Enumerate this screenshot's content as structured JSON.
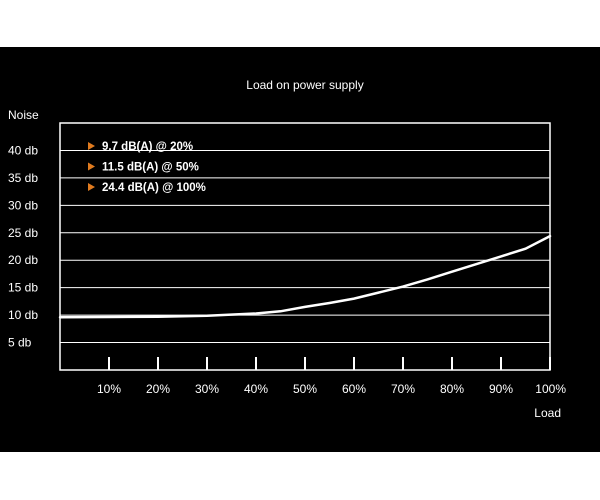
{
  "chart_data": {
    "type": "line",
    "title": "Load on power supply",
    "xlabel": "Load",
    "ylabel": "Noise",
    "x_ticks": [
      "10%",
      "20%",
      "30%",
      "40%",
      "50%",
      "60%",
      "70%",
      "80%",
      "90%",
      "100%"
    ],
    "y_ticks": [
      "5 db",
      "10 db",
      "15 db",
      "20 db",
      "25 db",
      "30 db",
      "35 db",
      "40 db"
    ],
    "xlim": [
      0,
      100
    ],
    "ylim": [
      0,
      45
    ],
    "series": [
      {
        "x": [
          0,
          10,
          20,
          30,
          40,
          45,
          50,
          55,
          60,
          65,
          70,
          75,
          80,
          85,
          90,
          95,
          100
        ],
        "y": [
          9.6,
          9.65,
          9.7,
          9.9,
          10.3,
          10.7,
          11.5,
          12.2,
          13.0,
          14.1,
          15.2,
          16.5,
          17.9,
          19.3,
          20.7,
          22.1,
          24.4
        ]
      }
    ],
    "annotations": [
      "9.7   dB(A) @ 20%",
      "11.5 dB(A) @ 50%",
      "24.4 dB(A) @ 100%"
    ],
    "grid": "horizontal",
    "colors": {
      "background": "#000000",
      "line": "#ffffff",
      "marker": "#e07b1f"
    }
  }
}
